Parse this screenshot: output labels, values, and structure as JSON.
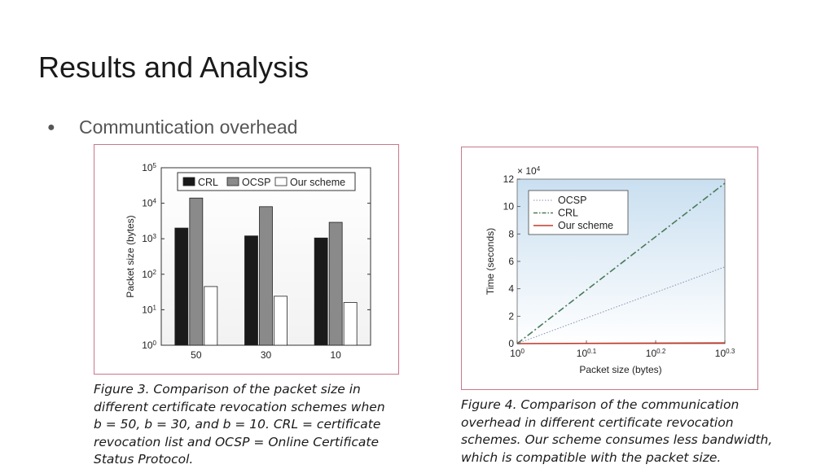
{
  "slide": {
    "title": "Results and Analysis",
    "bullet": "Communtication overhead"
  },
  "figure3": {
    "caption_lines": [
      "Figure 3. Comparison of the packet size in",
      "different certificate revocation schemes when",
      "b = 50, b = 30, and b = 10. CRL = certificate",
      "revocation list and OCSP = Online Certificate",
      "Status Protocol."
    ]
  },
  "figure4": {
    "caption_lines": [
      "Figure 4. Comparison of the communication",
      "overhead in different certificate revocation",
      "schemes. Our scheme consumes less bandwidth,",
      "which is compatible with the packet size."
    ]
  },
  "chart_data": [
    {
      "type": "bar",
      "yscale": "log",
      "ylabel": "Packet size (bytes)",
      "xlabel": "",
      "ylim": [
        1,
        100000
      ],
      "y_tick_labels": [
        "10^0",
        "10^1",
        "10^2",
        "10^3",
        "10^4",
        "10^5"
      ],
      "categories": [
        "50",
        "30",
        "10"
      ],
      "legend_position": "top",
      "series": [
        {
          "name": "CRL",
          "color": "#1a1a1a",
          "values": [
            2000,
            1200,
            1050
          ]
        },
        {
          "name": "OCSP",
          "color": "#8a8a8a",
          "values": [
            14000,
            8000,
            2900
          ]
        },
        {
          "name": "Our scheme",
          "color": "#ffffff",
          "values": [
            45,
            24,
            16
          ]
        }
      ]
    },
    {
      "type": "line",
      "xscale": "log",
      "xlabel": "Packet size (bytes)",
      "ylabel": "Time (seconds)",
      "y_multiplier": "× 10^4",
      "xlim": [
        1,
        1.995
      ],
      "ylim": [
        0,
        12
      ],
      "x_tick_labels": [
        "10^0",
        "10^0.1",
        "10^0.2",
        "10^0.3"
      ],
      "y_ticks": [
        0,
        2,
        4,
        6,
        8,
        10,
        12
      ],
      "legend_position": "top-left",
      "grid": false,
      "series": [
        {
          "name": "OCSP",
          "color": "#8a8fb0",
          "style": "dotted",
          "x": [
            1,
            1.995
          ],
          "y": [
            0,
            5.6
          ]
        },
        {
          "name": "CRL",
          "color": "#4a7a5a",
          "style": "dash-dot",
          "x": [
            1,
            1.995
          ],
          "y": [
            0,
            11.7
          ]
        },
        {
          "name": "Our scheme",
          "color": "#c0392b",
          "style": "solid",
          "x": [
            1,
            1.995
          ],
          "y": [
            0,
            0.05
          ]
        }
      ]
    }
  ]
}
